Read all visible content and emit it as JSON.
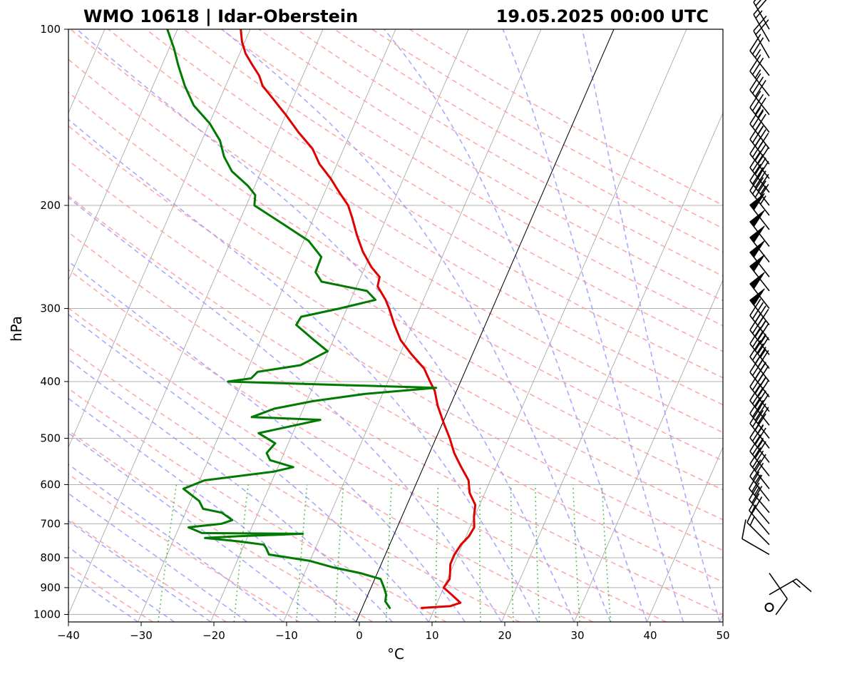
{
  "header": {
    "station": "WMO 10618 | Idar-Oberstein",
    "datetime": "19.05.2025 00:00 UTC"
  },
  "colors": {
    "temperature": "#e00000",
    "dewpoint": "#007a00",
    "dry_adiabat": "#ff9a9a",
    "moist_adiabat": "#9a9aff",
    "mixing_ratio": "#4cb84c",
    "isotherm": "#888888",
    "isobar": "#b0b0b0",
    "zero_isotherm": "#000000"
  },
  "chart_data": {
    "type": "line",
    "subtype": "skew-T log-p",
    "xlabel": "°C",
    "ylabel": "hPa",
    "xlim": [
      -40,
      50
    ],
    "ylim": [
      1030,
      100
    ],
    "y_scale": "log",
    "x_ticks": [
      -40,
      -30,
      -20,
      -10,
      0,
      10,
      20,
      30,
      40,
      50
    ],
    "y_ticks": [
      1000,
      900,
      800,
      700,
      600,
      500,
      400,
      300,
      200,
      100
    ],
    "grid": true,
    "series": [
      {
        "key": "temperature",
        "points": [
          [
            975,
            8.2
          ],
          [
            968,
            12.0
          ],
          [
            955,
            13.2
          ],
          [
            925,
            11.5
          ],
          [
            900,
            10.0
          ],
          [
            870,
            10.3
          ],
          [
            850,
            10.0
          ],
          [
            820,
            9.5
          ],
          [
            790,
            9.5
          ],
          [
            760,
            9.8
          ],
          [
            735,
            10.4
          ],
          [
            710,
            10.6
          ],
          [
            680,
            9.9
          ],
          [
            650,
            9.4
          ],
          [
            620,
            7.9
          ],
          [
            590,
            7.0
          ],
          [
            560,
            5.2
          ],
          [
            530,
            3.4
          ],
          [
            500,
            1.9
          ],
          [
            470,
            0.1
          ],
          [
            440,
            -1.7
          ],
          [
            415,
            -3.0
          ],
          [
            400,
            -4.2
          ],
          [
            380,
            -5.8
          ],
          [
            360,
            -8.3
          ],
          [
            340,
            -10.7
          ],
          [
            320,
            -12.5
          ],
          [
            300,
            -14.2
          ],
          [
            290,
            -15.2
          ],
          [
            275,
            -17.1
          ],
          [
            265,
            -17.4
          ],
          [
            255,
            -19.1
          ],
          [
            240,
            -21.2
          ],
          [
            225,
            -23.0
          ],
          [
            210,
            -24.7
          ],
          [
            200,
            -26.0
          ],
          [
            190,
            -28.0
          ],
          [
            180,
            -30.0
          ],
          [
            170,
            -32.4
          ],
          [
            160,
            -34.3
          ],
          [
            150,
            -37.2
          ],
          [
            140,
            -40.0
          ],
          [
            130,
            -43.2
          ],
          [
            125,
            -44.9
          ],
          [
            120,
            -46.0
          ],
          [
            115,
            -47.6
          ],
          [
            110,
            -49.2
          ],
          [
            105,
            -50.4
          ],
          [
            100,
            -51.3
          ]
        ]
      },
      {
        "key": "dewpoint",
        "points": [
          [
            975,
            3.8
          ],
          [
            950,
            2.8
          ],
          [
            925,
            2.5
          ],
          [
            900,
            1.8
          ],
          [
            870,
            0.8
          ],
          [
            850,
            -2.3
          ],
          [
            830,
            -6.6
          ],
          [
            810,
            -10.0
          ],
          [
            790,
            -16.0
          ],
          [
            770,
            -16.8
          ],
          [
            760,
            -17.3
          ],
          [
            750,
            -21.0
          ],
          [
            740,
            -25.8
          ],
          [
            735,
            -21.2
          ],
          [
            728,
            -12.6
          ],
          [
            726,
            -26.5
          ],
          [
            710,
            -28.7
          ],
          [
            700,
            -24.4
          ],
          [
            690,
            -23.1
          ],
          [
            670,
            -25.0
          ],
          [
            660,
            -27.8
          ],
          [
            640,
            -28.8
          ],
          [
            610,
            -31.7
          ],
          [
            590,
            -29.3
          ],
          [
            570,
            -20.3
          ],
          [
            560,
            -17.9
          ],
          [
            545,
            -21.5
          ],
          [
            530,
            -22.4
          ],
          [
            510,
            -21.8
          ],
          [
            490,
            -24.7
          ],
          [
            475,
            -20.1
          ],
          [
            465,
            -17.0
          ],
          [
            460,
            -26.6
          ],
          [
            445,
            -24.0
          ],
          [
            432,
            -19.1
          ],
          [
            420,
            -12.5
          ],
          [
            410,
            -3.0
          ],
          [
            400,
            -32.0
          ],
          [
            395,
            -29.0
          ],
          [
            385,
            -28.5
          ],
          [
            375,
            -23.0
          ],
          [
            355,
            -20.1
          ],
          [
            340,
            -22.6
          ],
          [
            320,
            -26.0
          ],
          [
            310,
            -25.8
          ],
          [
            300,
            -21.0
          ],
          [
            290,
            -16.6
          ],
          [
            280,
            -18.3
          ],
          [
            270,
            -25.1
          ],
          [
            260,
            -26.5
          ],
          [
            245,
            -26.6
          ],
          [
            230,
            -29.3
          ],
          [
            215,
            -33.9
          ],
          [
            200,
            -38.9
          ],
          [
            192,
            -39.4
          ],
          [
            185,
            -41.0
          ],
          [
            175,
            -44.0
          ],
          [
            165,
            -46.0
          ],
          [
            155,
            -47.5
          ],
          [
            145,
            -49.9
          ],
          [
            135,
            -53.2
          ],
          [
            125,
            -55.6
          ],
          [
            115,
            -57.8
          ],
          [
            108,
            -59.3
          ],
          [
            100,
            -61.4
          ]
        ]
      }
    ],
    "wind_barbs": [
      {
        "p": 1000,
        "speed_kt": 0
      },
      {
        "p": 925,
        "speed_kt": 15,
        "dir_deg": 60
      },
      {
        "p": 850,
        "speed_kt": 10,
        "dir_deg": 145
      },
      {
        "p": 790,
        "speed_kt": 10,
        "dir_deg": 300
      },
      {
        "p": 760,
        "speed_kt": 15,
        "dir_deg": 315
      },
      {
        "p": 730,
        "speed_kt": 20,
        "dir_deg": 320
      },
      {
        "p": 700,
        "speed_kt": 20,
        "dir_deg": 320
      },
      {
        "p": 670,
        "speed_kt": 25,
        "dir_deg": 320
      },
      {
        "p": 640,
        "speed_kt": 25,
        "dir_deg": 322
      },
      {
        "p": 610,
        "speed_kt": 30,
        "dir_deg": 322
      },
      {
        "p": 580,
        "speed_kt": 30,
        "dir_deg": 322
      },
      {
        "p": 550,
        "speed_kt": 35,
        "dir_deg": 322
      },
      {
        "p": 520,
        "speed_kt": 35,
        "dir_deg": 322
      },
      {
        "p": 500,
        "speed_kt": 40,
        "dir_deg": 322
      },
      {
        "p": 475,
        "speed_kt": 40,
        "dir_deg": 322
      },
      {
        "p": 450,
        "speed_kt": 40,
        "dir_deg": 322
      },
      {
        "p": 425,
        "speed_kt": 45,
        "dir_deg": 322
      },
      {
        "p": 400,
        "speed_kt": 45,
        "dir_deg": 322
      },
      {
        "p": 380,
        "speed_kt": 45,
        "dir_deg": 322
      },
      {
        "p": 360,
        "speed_kt": 45,
        "dir_deg": 322
      },
      {
        "p": 340,
        "speed_kt": 45,
        "dir_deg": 322
      },
      {
        "p": 320,
        "speed_kt": 50,
        "dir_deg": 322
      },
      {
        "p": 300,
        "speed_kt": 50,
        "dir_deg": 322
      },
      {
        "p": 280,
        "speed_kt": 50,
        "dir_deg": 322
      },
      {
        "p": 265,
        "speed_kt": 50,
        "dir_deg": 322
      },
      {
        "p": 250,
        "speed_kt": 50,
        "dir_deg": 322
      },
      {
        "p": 235,
        "speed_kt": 50,
        "dir_deg": 322
      },
      {
        "p": 220,
        "speed_kt": 50,
        "dir_deg": 322
      },
      {
        "p": 208,
        "speed_kt": 45,
        "dir_deg": 322
      },
      {
        "p": 200,
        "speed_kt": 45,
        "dir_deg": 322
      },
      {
        "p": 190,
        "speed_kt": 40,
        "dir_deg": 322
      },
      {
        "p": 180,
        "speed_kt": 40,
        "dir_deg": 322
      },
      {
        "p": 170,
        "speed_kt": 40,
        "dir_deg": 322
      },
      {
        "p": 160,
        "speed_kt": 35,
        "dir_deg": 322
      },
      {
        "p": 150,
        "speed_kt": 35,
        "dir_deg": 322
      },
      {
        "p": 140,
        "speed_kt": 30,
        "dir_deg": 322
      },
      {
        "p": 130,
        "speed_kt": 25,
        "dir_deg": 322
      },
      {
        "p": 120,
        "speed_kt": 25,
        "dir_deg": 322
      },
      {
        "p": 112,
        "speed_kt": 20,
        "dir_deg": 330
      },
      {
        "p": 105,
        "speed_kt": 15,
        "dir_deg": 330
      },
      {
        "p": 100,
        "speed_kt": 15,
        "dir_deg": 330
      }
    ]
  }
}
